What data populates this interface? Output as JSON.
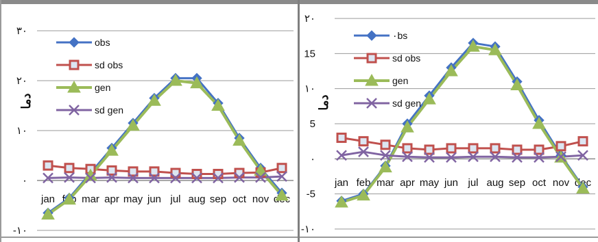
{
  "chart_data": [
    {
      "type": "line",
      "title": "",
      "xlabel": "",
      "ylabel": "دما",
      "ylim": [
        -10,
        30
      ],
      "yticks": [
        "-۱۰",
        "۰",
        "۱۰",
        "۲۰",
        "۳۰"
      ],
      "yticks_values": [
        -10,
        0,
        10,
        20,
        30
      ],
      "categories": [
        "jan",
        "feb",
        "mar",
        "apr",
        "may",
        "jun",
        "jul",
        "aug",
        "sep",
        "oct",
        "nov",
        "dec"
      ],
      "grid": true,
      "legend_position": "top-left",
      "series": [
        {
          "name": "obs",
          "color": "#4472c4",
          "marker": "diamond",
          "values": [
            -6.5,
            -3.5,
            1.5,
            6.5,
            11.5,
            16.5,
            20.5,
            20.5,
            15.5,
            8.5,
            2.5,
            -2.5
          ]
        },
        {
          "name": "sd obs",
          "color": "#c0504d",
          "marker": "square",
          "values": [
            3.0,
            2.5,
            2.3,
            2.0,
            1.8,
            1.8,
            1.5,
            1.3,
            1.3,
            1.5,
            1.6,
            2.5
          ]
        },
        {
          "name": "gen",
          "color": "#9bbb59",
          "marker": "triangle",
          "values": [
            -6.8,
            -3.8,
            1.0,
            6.0,
            11.0,
            16.0,
            20.0,
            19.5,
            15.0,
            8.0,
            2.0,
            -3.0
          ]
        },
        {
          "name": "sd gen",
          "color": "#8064a2",
          "marker": "x",
          "values": [
            0.5,
            0.6,
            0.5,
            0.6,
            0.5,
            0.5,
            0.5,
            0.5,
            0.5,
            0.6,
            0.6,
            0.8
          ]
        }
      ]
    },
    {
      "type": "line",
      "title": "",
      "xlabel": "",
      "ylabel": "دما",
      "ylim": [
        -10,
        20
      ],
      "yticks": [
        "-۱۰",
        "-5",
        "۰",
        "5",
        "۱۰",
        "15",
        "۲۰"
      ],
      "yticks_values": [
        -10,
        -5,
        0,
        5,
        10,
        15,
        20
      ],
      "categories": [
        "jan",
        "feb",
        "mar",
        "apr",
        "may",
        "jun",
        "jul",
        "aug",
        "sep",
        "oct",
        "nov",
        "dec"
      ],
      "grid": true,
      "legend_position": "top-left",
      "series": [
        {
          "name": "۰bs",
          "color": "#4472c4",
          "marker": "diamond",
          "values": [
            -6.0,
            -5.0,
            -1.0,
            5.0,
            9.0,
            13.0,
            16.5,
            16.0,
            11.0,
            5.5,
            0.5,
            -4.0
          ]
        },
        {
          "name": "sd obs",
          "color": "#c0504d",
          "marker": "square",
          "values": [
            3.0,
            2.5,
            2.0,
            1.5,
            1.3,
            1.5,
            1.5,
            1.5,
            1.3,
            1.3,
            1.8,
            2.5
          ]
        },
        {
          "name": "gen",
          "color": "#9bbb59",
          "marker": "triangle",
          "values": [
            -6.2,
            -5.2,
            -1.2,
            4.5,
            8.5,
            12.5,
            16.0,
            15.5,
            10.5,
            5.0,
            0.2,
            -4.2
          ]
        },
        {
          "name": "sd gen",
          "color": "#8064a2",
          "marker": "x",
          "values": [
            0.5,
            1.0,
            0.5,
            0.3,
            0.2,
            0.2,
            0.3,
            0.3,
            0.2,
            0.2,
            0.3,
            0.5
          ]
        }
      ]
    }
  ]
}
